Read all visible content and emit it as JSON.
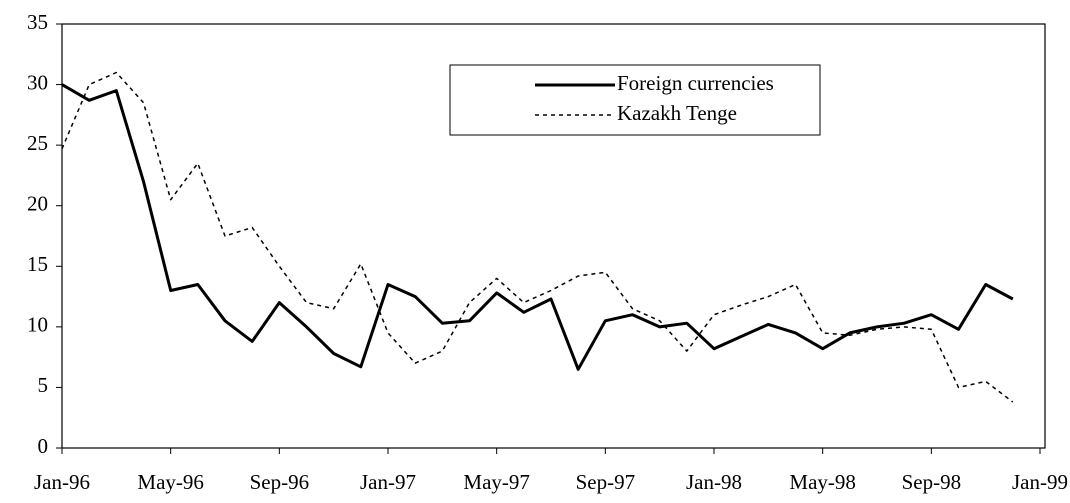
{
  "chart_data": {
    "type": "line",
    "categories": [
      "Jan-96",
      null,
      null,
      null,
      "May-96",
      null,
      null,
      null,
      "Sep-96",
      null,
      null,
      null,
      "Jan-97",
      null,
      null,
      null,
      "May-97",
      null,
      null,
      null,
      "Sep-97",
      null,
      null,
      null,
      "Jan-98",
      null,
      null,
      null,
      "May-98",
      null,
      null,
      null,
      "Sep-98",
      null,
      null,
      null,
      "Jan-99"
    ],
    "series": [
      {
        "name": "Foreign currencies",
        "color": "#000000",
        "dash": "solid",
        "values": [
          30,
          28.7,
          29.5,
          22,
          13,
          13.5,
          10.5,
          8.8,
          12,
          10,
          7.8,
          6.7,
          13.5,
          12.5,
          10.3,
          10.5,
          12.8,
          11.2,
          12.3,
          6.5,
          10.5,
          11,
          10,
          10.3,
          8.2,
          9.2,
          10.2,
          9.5,
          8.2,
          9.5,
          10,
          10.3,
          11,
          9.8,
          13.5,
          12.3,
          null
        ]
      },
      {
        "name": "Kazakh Tenge",
        "color": "#000000",
        "dash": "dotted",
        "values": [
          24.7,
          30,
          31,
          28.5,
          20.5,
          23.5,
          17.5,
          18.2,
          15,
          12,
          11.5,
          15.2,
          9.5,
          7,
          8,
          12,
          14,
          12,
          13,
          14.2,
          14.5,
          11.5,
          10.5,
          8,
          11,
          11.8,
          12.5,
          13.5,
          9.5,
          9.3,
          9.8,
          10,
          9.8,
          5,
          5.5,
          3.8,
          null
        ]
      }
    ],
    "ylim": [
      0,
      35
    ],
    "yticks": [
      0,
      5,
      10,
      15,
      20,
      25,
      30,
      35
    ],
    "grid": false,
    "legend": "top"
  }
}
